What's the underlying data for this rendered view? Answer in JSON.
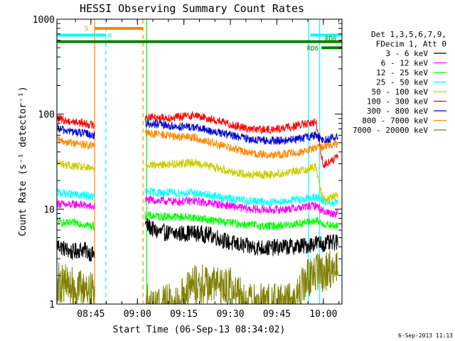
{
  "chart_data": {
    "type": "line",
    "title": "HESSI Observing Summary Count Rates",
    "xlabel": "Start Time (06-Sep-13 08:34:02)",
    "ylabel": "Count Rate (s⁻¹ detector⁻¹)",
    "yscale": "log",
    "ylim": [
      1,
      1000
    ],
    "xlim": [
      8.567,
      10.1
    ],
    "x_ticks": [
      {
        "value": 8.75,
        "label": "08:45"
      },
      {
        "value": 9.0,
        "label": "09:00"
      },
      {
        "value": 9.25,
        "label": "09:15"
      },
      {
        "value": 9.5,
        "label": "09:30"
      },
      {
        "value": 9.75,
        "label": "09:45"
      },
      {
        "value": 10.0,
        "label": "10:00"
      }
    ],
    "y_ticks": [
      {
        "value": 1,
        "label": "1"
      },
      {
        "value": 10,
        "label": "10"
      },
      {
        "value": 100,
        "label": "100"
      },
      {
        "value": 1000,
        "label": "1000"
      }
    ],
    "grid": false,
    "legend_position": "right",
    "legend_header": [
      "Det 1,3,5,6,7,9,",
      "FDecim 1, Att 0"
    ],
    "series": [
      {
        "name": "3 - 6 keV",
        "color": "#000000",
        "points": [
          [
            8.57,
            4.2
          ],
          [
            8.6,
            3.9
          ],
          [
            8.65,
            3.5
          ],
          [
            8.7,
            3.8
          ],
          [
            8.73,
            3.6
          ],
          [
            8.76,
            3.3
          ],
          [
            9.04,
            7.0
          ],
          [
            9.1,
            5.8
          ],
          [
            9.2,
            5.5
          ],
          [
            9.3,
            5.6
          ],
          [
            9.4,
            5.3
          ],
          [
            9.5,
            4.4
          ],
          [
            9.6,
            4.0
          ],
          [
            9.7,
            3.9
          ],
          [
            9.8,
            4.0
          ],
          [
            9.9,
            4.1
          ],
          [
            9.96,
            4.4
          ],
          [
            10.0,
            4.3
          ],
          [
            10.05,
            4.4
          ],
          [
            10.08,
            4.5
          ]
        ]
      },
      {
        "name": "6 - 12 keV",
        "color": "#ff00ff",
        "points": [
          [
            8.57,
            11.5
          ],
          [
            8.62,
            11.0
          ],
          [
            8.68,
            11.3
          ],
          [
            8.73,
            10.8
          ],
          [
            8.76,
            10.5
          ],
          [
            9.04,
            12.5
          ],
          [
            9.1,
            12.3
          ],
          [
            9.2,
            12.0
          ],
          [
            9.3,
            12.2
          ],
          [
            9.4,
            11.5
          ],
          [
            9.5,
            10.8
          ],
          [
            9.6,
            10.0
          ],
          [
            9.7,
            9.8
          ],
          [
            9.8,
            10.0
          ],
          [
            9.9,
            10.5
          ],
          [
            9.96,
            11.0
          ],
          [
            10.0,
            9.5
          ],
          [
            10.05,
            9.0
          ],
          [
            10.08,
            9.3
          ]
        ]
      },
      {
        "name": "12 - 25 keV",
        "color": "#00ff00",
        "points": [
          [
            8.57,
            7.5
          ],
          [
            8.62,
            7.0
          ],
          [
            8.68,
            7.2
          ],
          [
            8.73,
            6.8
          ],
          [
            8.76,
            6.6
          ],
          [
            9.04,
            8.6
          ],
          [
            9.1,
            8.4
          ],
          [
            9.2,
            8.3
          ],
          [
            9.3,
            8.2
          ],
          [
            9.4,
            7.6
          ],
          [
            9.5,
            7.2
          ],
          [
            9.6,
            6.8
          ],
          [
            9.7,
            6.6
          ],
          [
            9.8,
            6.8
          ],
          [
            9.9,
            7.2
          ],
          [
            9.96,
            7.5
          ],
          [
            10.0,
            7.0
          ],
          [
            10.05,
            6.6
          ],
          [
            10.08,
            6.7
          ]
        ]
      },
      {
        "name": "25 - 50 keV",
        "color": "#00ffff",
        "points": [
          [
            8.57,
            15.0
          ],
          [
            8.62,
            14.5
          ],
          [
            8.68,
            14.0
          ],
          [
            8.73,
            13.8
          ],
          [
            8.76,
            13.5
          ],
          [
            9.04,
            15.5
          ],
          [
            9.1,
            15.0
          ],
          [
            9.2,
            14.8
          ],
          [
            9.3,
            14.8
          ],
          [
            9.4,
            13.8
          ],
          [
            9.5,
            12.8
          ],
          [
            9.6,
            12.2
          ],
          [
            9.7,
            11.8
          ],
          [
            9.8,
            12.2
          ],
          [
            9.9,
            12.8
          ],
          [
            9.96,
            13.5
          ],
          [
            10.0,
            12.0
          ],
          [
            10.05,
            11.5
          ],
          [
            10.08,
            11.8
          ]
        ]
      },
      {
        "name": "50 - 100 keV",
        "color": "#cccc00",
        "points": [
          [
            8.57,
            31
          ],
          [
            8.62,
            29
          ],
          [
            8.68,
            28
          ],
          [
            8.73,
            27
          ],
          [
            8.76,
            26.5
          ],
          [
            9.04,
            30
          ],
          [
            9.1,
            29
          ],
          [
            9.2,
            30
          ],
          [
            9.3,
            31
          ],
          [
            9.4,
            28
          ],
          [
            9.5,
            25
          ],
          [
            9.6,
            23
          ],
          [
            9.7,
            23
          ],
          [
            9.8,
            24
          ],
          [
            9.9,
            26
          ],
          [
            9.96,
            28
          ],
          [
            10.0,
            12.5
          ],
          [
            10.05,
            13.5
          ],
          [
            10.08,
            14.5
          ]
        ]
      },
      {
        "name": "100 - 300 keV",
        "color": "#ff0000",
        "points": [
          [
            8.57,
            90
          ],
          [
            8.62,
            85
          ],
          [
            8.68,
            82
          ],
          [
            8.73,
            79
          ],
          [
            8.76,
            77
          ],
          [
            9.04,
            95
          ],
          [
            9.1,
            92
          ],
          [
            9.2,
            92
          ],
          [
            9.3,
            98
          ],
          [
            9.4,
            88
          ],
          [
            9.5,
            78
          ],
          [
            9.6,
            70
          ],
          [
            9.7,
            68
          ],
          [
            9.8,
            72
          ],
          [
            9.9,
            78
          ],
          [
            9.96,
            83
          ],
          [
            10.0,
            29
          ],
          [
            10.05,
            33
          ],
          [
            10.08,
            35
          ]
        ]
      },
      {
        "name": "300 - 800 keV",
        "color": "#0000cc",
        "points": [
          [
            8.57,
            70
          ],
          [
            8.62,
            67
          ],
          [
            8.68,
            64
          ],
          [
            8.73,
            62
          ],
          [
            8.76,
            60
          ],
          [
            9.04,
            80
          ],
          [
            9.1,
            78
          ],
          [
            9.2,
            74
          ],
          [
            9.3,
            73
          ],
          [
            9.4,
            66
          ],
          [
            9.5,
            60
          ],
          [
            9.6,
            55
          ],
          [
            9.7,
            52
          ],
          [
            9.8,
            53
          ],
          [
            9.9,
            56
          ],
          [
            9.96,
            60
          ],
          [
            10.0,
            53
          ],
          [
            10.05,
            56
          ],
          [
            10.08,
            58
          ]
        ]
      },
      {
        "name": "800 - 7000 keV",
        "color": "#ff8800",
        "points": [
          [
            8.57,
            53
          ],
          [
            8.62,
            51
          ],
          [
            8.68,
            49
          ],
          [
            8.73,
            47
          ],
          [
            8.76,
            46
          ],
          [
            9.04,
            63
          ],
          [
            9.1,
            62
          ],
          [
            9.2,
            58
          ],
          [
            9.3,
            57
          ],
          [
            9.4,
            50
          ],
          [
            9.5,
            44
          ],
          [
            9.6,
            39
          ],
          [
            9.7,
            37
          ],
          [
            9.8,
            38
          ],
          [
            9.9,
            41
          ],
          [
            9.96,
            44
          ],
          [
            10.0,
            46
          ],
          [
            10.05,
            48
          ],
          [
            10.08,
            49
          ]
        ]
      },
      {
        "name": "7000 - 20000 keV",
        "color": "#808000",
        "points": [
          [
            8.57,
            1.7
          ],
          [
            8.62,
            1.6
          ],
          [
            8.68,
            1.4
          ],
          [
            8.73,
            1.5
          ],
          [
            8.76,
            1.3
          ],
          [
            9.04,
            1.0
          ],
          [
            9.2,
            1.0
          ],
          [
            9.3,
            1.6
          ],
          [
            9.4,
            1.6
          ],
          [
            9.5,
            1.5
          ],
          [
            9.6,
            1.0
          ],
          [
            9.7,
            1.0
          ],
          [
            9.8,
            1.0
          ],
          [
            9.85,
            1.0
          ],
          [
            9.9,
            1.8
          ],
          [
            9.96,
            2.1
          ],
          [
            10.0,
            2.2
          ],
          [
            10.05,
            2.4
          ],
          [
            10.08,
            2.6
          ]
        ]
      }
    ],
    "flag_bars": [
      {
        "label": "S",
        "color": "#ff8800",
        "x_start": 8.77,
        "x_end": 9.03,
        "y": 800
      },
      {
        "label": "N",
        "color": "#00ffff",
        "x_start": 8.567,
        "x_end": 8.83,
        "y": 680
      },
      {
        "label": "",
        "color": "#00ffff",
        "x_start": 9.93,
        "x_end": 10.1,
        "y": 680
      },
      {
        "label": "RD0",
        "color": "#008000",
        "x_start": 8.567,
        "x_end": 10.1,
        "y": 580
      },
      {
        "label": "RD6",
        "color": "#008000",
        "x_start": 9.99,
        "x_end": 10.1,
        "y": 500
      }
    ],
    "vertical_markers": [
      {
        "x": 8.567,
        "color": "#00ffff",
        "style": "solid"
      },
      {
        "x": 8.77,
        "color": "#ff8800",
        "style": "solid"
      },
      {
        "x": 8.83,
        "color": "#00ffff",
        "style": "dashed"
      },
      {
        "x": 9.03,
        "color": "#ff8800",
        "style": "dashed"
      },
      {
        "x": 9.05,
        "color": "#00ff00",
        "style": "solid"
      },
      {
        "x": 9.92,
        "color": "#00ffff",
        "style": "solid"
      },
      {
        "x": 9.98,
        "color": "#00ffff",
        "style": "solid"
      },
      {
        "x": 10.1,
        "color": "#00ffff",
        "style": "dashed"
      }
    ],
    "timestamp": "6-Sep-2013 11:13"
  }
}
